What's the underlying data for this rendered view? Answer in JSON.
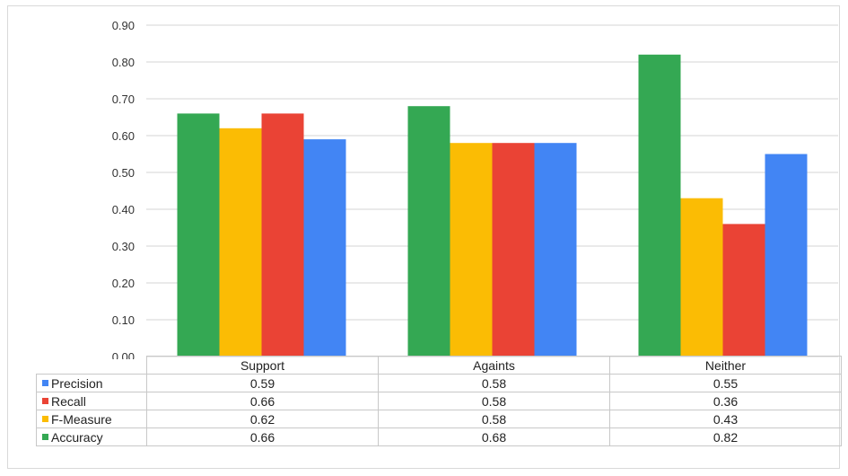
{
  "chart_data": {
    "type": "bar",
    "categories": [
      "Support",
      "Againts",
      "Neither"
    ],
    "series": [
      {
        "name": "Accuracy",
        "color": "#34A853",
        "values": [
          0.66,
          0.68,
          0.82
        ]
      },
      {
        "name": "F-Measure",
        "color": "#FBBC04",
        "values": [
          0.62,
          0.58,
          0.43
        ]
      },
      {
        "name": "Recall",
        "color": "#EA4335",
        "values": [
          0.66,
          0.58,
          0.36
        ]
      },
      {
        "name": "Precision",
        "color": "#4285F4",
        "values": [
          0.59,
          0.58,
          0.55
        ]
      }
    ],
    "yticks": [
      "0.00",
      "0.10",
      "0.20",
      "0.30",
      "0.40",
      "0.50",
      "0.60",
      "0.70",
      "0.80",
      "0.90"
    ],
    "ylim": [
      0,
      0.9
    ],
    "grid": true,
    "legend": "data table below chart",
    "table": {
      "rows": [
        {
          "name": "Precision",
          "color": "#4285F4",
          "cells": [
            "0.59",
            "0.58",
            "0.55"
          ]
        },
        {
          "name": "Recall",
          "color": "#EA4335",
          "cells": [
            "0.66",
            "0.58",
            "0.36"
          ]
        },
        {
          "name": "F-Measure",
          "color": "#FBBC04",
          "cells": [
            "0.62",
            "0.58",
            "0.43"
          ]
        },
        {
          "name": "Accuracy",
          "color": "#34A853",
          "cells": [
            "0.66",
            "0.68",
            "0.82"
          ]
        }
      ]
    }
  }
}
